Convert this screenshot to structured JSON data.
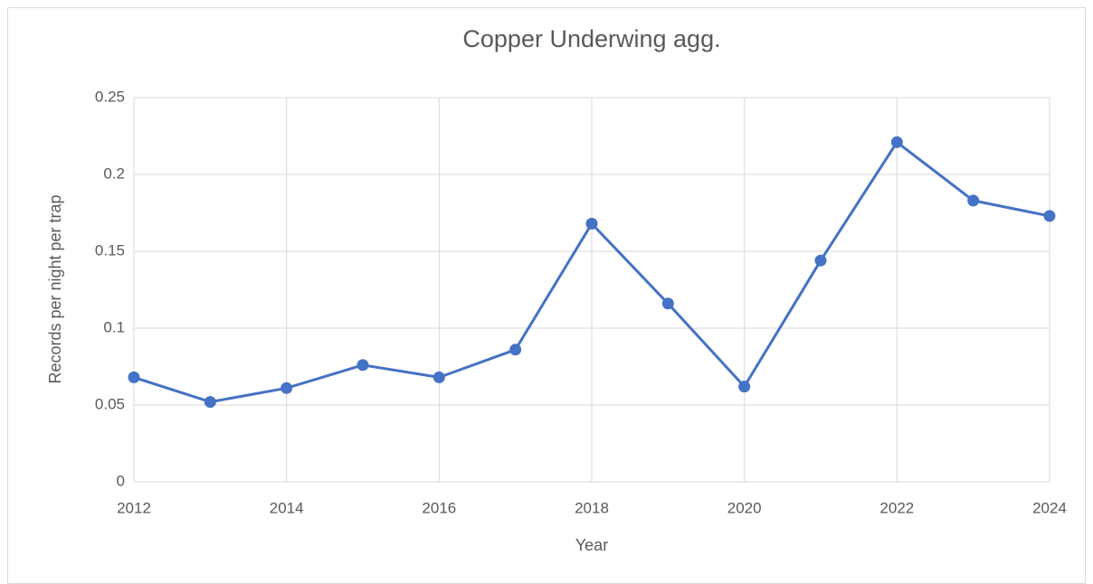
{
  "chart_data": {
    "type": "line",
    "title": "Copper Underwing agg.",
    "x_label": "Year",
    "y_label": "Records per night per trap",
    "x": [
      2012,
      2013,
      2014,
      2015,
      2016,
      2017,
      2018,
      2019,
      2020,
      2021,
      2022,
      2023,
      2024
    ],
    "series": [
      {
        "name": "Copper Underwing agg.",
        "color": "#4472c4",
        "values": [
          0.068,
          0.052,
          0.061,
          0.076,
          0.068,
          0.086,
          0.168,
          0.116,
          0.062,
          0.144,
          0.221,
          0.183,
          0.173
        ]
      }
    ],
    "xlim": [
      2012,
      2024
    ],
    "xticks": [
      2012,
      2014,
      2016,
      2018,
      2020,
      2022,
      2024
    ],
    "ylim": [
      0,
      0.25
    ],
    "yticks": [
      0,
      0.05,
      0.1,
      0.15,
      0.2,
      0.25
    ],
    "grid": true
  }
}
